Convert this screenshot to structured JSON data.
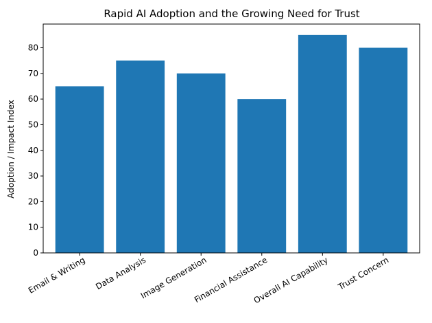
{
  "chart_data": {
    "type": "bar",
    "title": "Rapid AI Adoption and the Growing Need for Trust",
    "xlabel": "",
    "ylabel": "Adoption / Impact Index",
    "categories": [
      "Email & Writing",
      "Data Analysis",
      "Image Generation",
      "Financial Assistance",
      "Overall AI Capability",
      "Trust Concern"
    ],
    "values": [
      65,
      75,
      70,
      60,
      85,
      80
    ],
    "ylim": [
      0,
      89.25
    ],
    "yticks": [
      0,
      10,
      20,
      30,
      40,
      50,
      60,
      70,
      80
    ],
    "bar_color": "#1f77b4",
    "grid": false
  }
}
